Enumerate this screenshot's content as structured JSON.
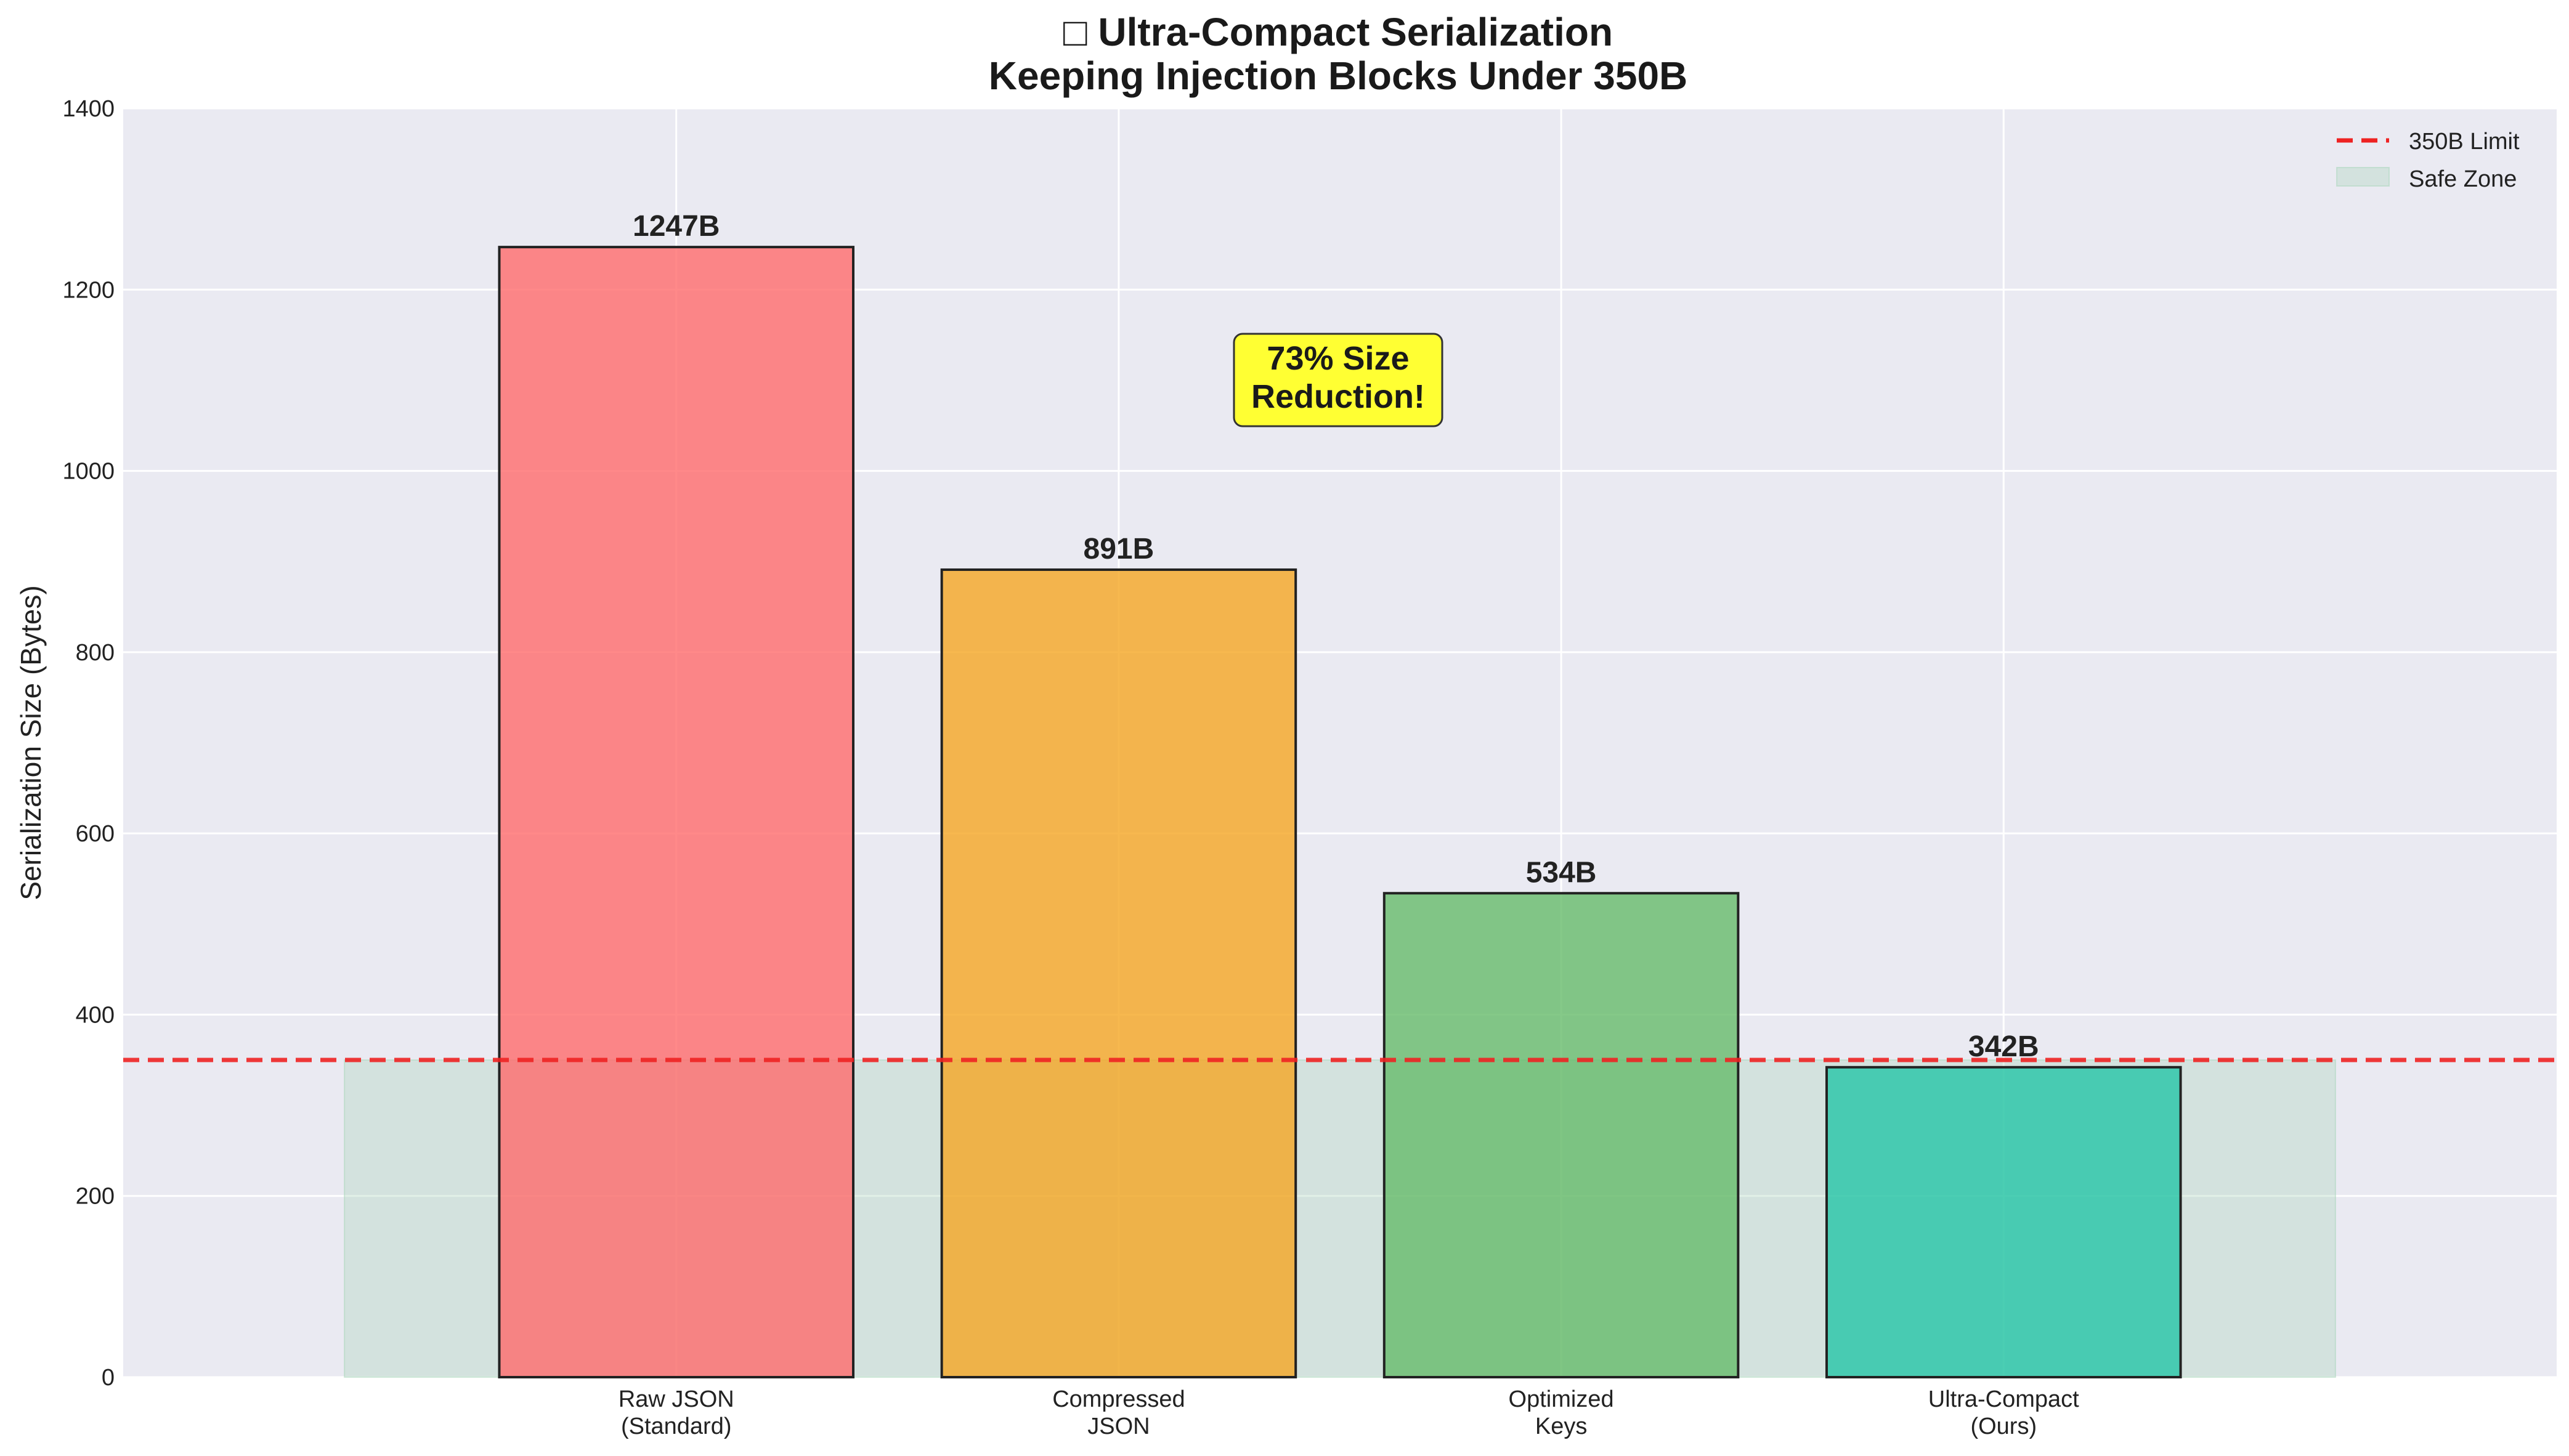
{
  "chart_data": {
    "type": "bar",
    "title_lines": [
      "□ Ultra-Compact Serialization",
      "Keeping Injection Blocks Under 350B"
    ],
    "xlabel": "",
    "ylabel": "Serialization Size (Bytes)",
    "categories": [
      [
        "Raw JSON",
        "(Standard)"
      ],
      [
        "Compressed",
        "JSON"
      ],
      [
        "Optimized",
        "Keys"
      ],
      [
        "Ultra-Compact",
        "(Ours)"
      ]
    ],
    "values": [
      1247,
      891,
      534,
      342
    ],
    "value_labels": [
      "1247B",
      "891B",
      "534B",
      "342B"
    ],
    "bar_colors": [
      "#ff6b6b",
      "#f5a623",
      "#66bb6a",
      "#26c6a6"
    ],
    "ylim": [
      0,
      1400
    ],
    "yticks": [
      0,
      200,
      400,
      600,
      800,
      1000,
      1200,
      1400
    ],
    "grid": true,
    "limit_line": {
      "value": 350,
      "label": "350B Limit",
      "color": "#ee2222"
    },
    "safe_zone": {
      "from": 0,
      "to": 350,
      "label": "Safe Zone",
      "color": "#a8d5ba"
    },
    "annotation": {
      "lines": [
        "73% Size",
        "Reduction!"
      ],
      "background": "#ffff33"
    },
    "legend_position": "top-right",
    "background": "#eaeaf2"
  }
}
